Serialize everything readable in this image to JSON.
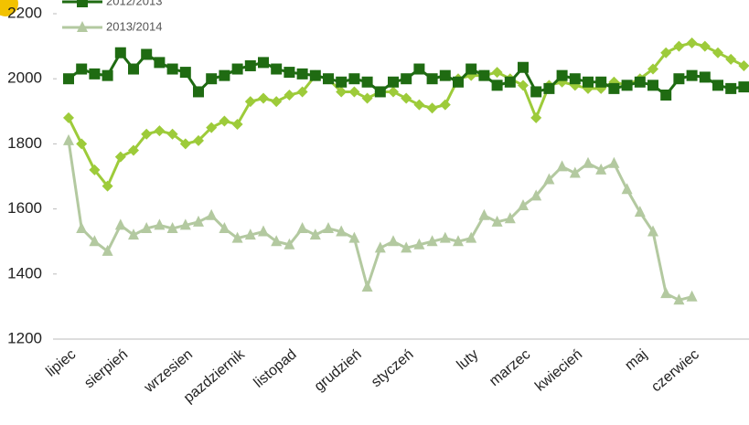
{
  "chart_data": {
    "type": "line",
    "categories": [
      "lipiec",
      null,
      null,
      null,
      "sierpień",
      null,
      null,
      null,
      null,
      "wrzesien",
      null,
      null,
      null,
      "pazdziernik",
      null,
      null,
      null,
      "listopad",
      null,
      null,
      null,
      null,
      "grudzień",
      null,
      null,
      null,
      "styczeń",
      null,
      null,
      null,
      null,
      "luty",
      null,
      null,
      null,
      "marzec",
      null,
      null,
      null,
      "kwiecień",
      null,
      null,
      null,
      null,
      "maj",
      null,
      null,
      null,
      "czerwiec",
      null,
      null,
      null,
      null
    ],
    "series": [
      {
        "name": "2012/2013",
        "color": "#1f6b12",
        "marker": "square",
        "values": [
          2000,
          2030,
          2015,
          2010,
          2080,
          2030,
          2075,
          2050,
          2030,
          2020,
          1960,
          2000,
          2010,
          2030,
          2040,
          2050,
          2030,
          2020,
          2015,
          2010,
          2000,
          1990,
          2000,
          1990,
          1960,
          1990,
          2000,
          2030,
          2000,
          2010,
          1990,
          2030,
          2010,
          1980,
          1990,
          2035,
          1960,
          1970,
          2010,
          2000,
          1990,
          1990,
          1970,
          1980,
          1990,
          1980,
          1950,
          2000,
          2010,
          2005,
          1980,
          1970,
          1975
        ]
      },
      {
        "color": "#9dcb3a",
        "marker": "diamond",
        "values": [
          1880,
          1800,
          1720,
          1670,
          1760,
          1780,
          1830,
          1840,
          1830,
          1800,
          1810,
          1850,
          1870,
          1860,
          1930,
          1940,
          1930,
          1950,
          1960,
          2010,
          2000,
          1960,
          1960,
          1940,
          1960,
          1960,
          1940,
          1920,
          1910,
          1920,
          2000,
          2010,
          2010,
          2020,
          2000,
          1980,
          1880,
          1980,
          1990,
          1980,
          1970,
          1970,
          1990,
          1980,
          2000,
          2030,
          2080,
          2100,
          2110,
          2100,
          2080,
          2060,
          2040
        ]
      },
      {
        "name": "2013/2014",
        "color": "#b3c9a0",
        "marker": "triangle",
        "values": [
          1810,
          1540,
          1500,
          1470,
          1550,
          1520,
          1540,
          1550,
          1540,
          1550,
          1560,
          1580,
          1540,
          1510,
          1520,
          1530,
          1500,
          1490,
          1540,
          1520,
          1540,
          1530,
          1510,
          1360,
          1480,
          1500,
          1480,
          1490,
          1500,
          1510,
          1500,
          1510,
          1580,
          1560,
          1570,
          1610,
          1640,
          1690,
          1730,
          1710,
          1740,
          1720,
          1740,
          1660,
          1590,
          1530,
          1340,
          1320,
          1330,
          null,
          null,
          null,
          null
        ]
      }
    ],
    "ylim": [
      1200,
      2200
    ],
    "yticks": [
      1200,
      1400,
      1600,
      1800,
      2000,
      2200
    ],
    "grid": false
  }
}
